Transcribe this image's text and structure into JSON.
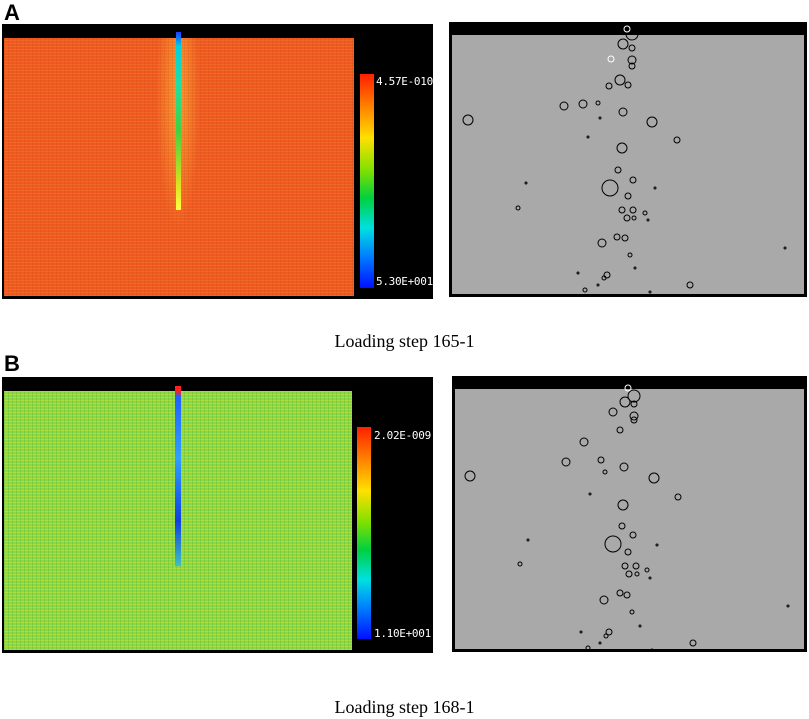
{
  "panels": [
    {
      "letter": "A",
      "colorbar_max": "4.57E-010",
      "colorbar_min": "5.30E+001",
      "caption": "Loading step 165-1"
    },
    {
      "letter": "B",
      "colorbar_max": "2.02E-009",
      "colorbar_min": "1.10E+001",
      "caption": "Loading step 168-1"
    }
  ]
}
